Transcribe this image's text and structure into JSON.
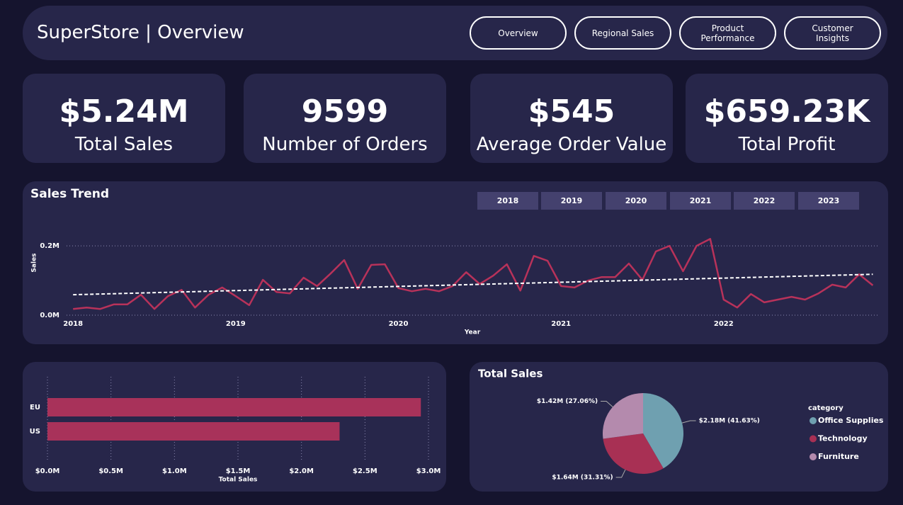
{
  "header": {
    "title": "SuperStore | Overview"
  },
  "nav": [
    "Overview",
    "Regional Sales",
    "Product Performance",
    "Customer Insights"
  ],
  "kpis": [
    {
      "value": "$5.24M",
      "label": "Total Sales"
    },
    {
      "value": "9599",
      "label": "Number of Orders"
    },
    {
      "value": "$545",
      "label": "Average Order Value"
    },
    {
      "value": "$659.23K",
      "label": "Total Profit"
    }
  ],
  "year_slicer": [
    "2018",
    "2019",
    "2020",
    "2021",
    "2022",
    "2023"
  ],
  "chart_data": [
    {
      "type": "line",
      "title": "Sales Trend",
      "x_label": "Year",
      "y_label": "Sales",
      "x": [
        2018,
        2018.083,
        2018.167,
        2018.25,
        2018.333,
        2018.417,
        2018.5,
        2018.583,
        2018.667,
        2018.75,
        2018.833,
        2018.917,
        2019,
        2019.083,
        2019.167,
        2019.25,
        2019.333,
        2019.417,
        2019.5,
        2019.583,
        2019.667,
        2019.75,
        2019.833,
        2019.917,
        2020,
        2020.083,
        2020.167,
        2020.25,
        2020.333,
        2020.417,
        2020.5,
        2020.583,
        2020.667,
        2020.75,
        2020.833,
        2020.917,
        2021,
        2021.083,
        2021.167,
        2021.25,
        2021.333,
        2021.417,
        2021.5,
        2021.583,
        2021.667,
        2021.75,
        2021.833,
        2021.917,
        2022,
        2022.083,
        2022.167,
        2022.25,
        2022.333,
        2022.417,
        2022.5,
        2022.583,
        2022.667,
        2022.75,
        2022.833,
        2022.917
      ],
      "values": [
        0.018,
        0.022,
        0.018,
        0.031,
        0.031,
        0.059,
        0.018,
        0.055,
        0.073,
        0.022,
        0.059,
        0.08,
        0.055,
        0.029,
        0.102,
        0.067,
        0.063,
        0.108,
        0.084,
        0.12,
        0.159,
        0.076,
        0.145,
        0.147,
        0.078,
        0.069,
        0.076,
        0.069,
        0.084,
        0.124,
        0.09,
        0.114,
        0.147,
        0.071,
        0.171,
        0.157,
        0.084,
        0.08,
        0.1,
        0.11,
        0.11,
        0.149,
        0.102,
        0.184,
        0.2,
        0.127,
        0.2,
        0.22,
        0.045,
        0.022,
        0.061,
        0.037,
        0.045,
        0.053,
        0.045,
        0.063,
        0.088,
        0.08,
        0.118,
        0.086
      ],
      "color": "#b8325a",
      "trend_line": {
        "x": [
          2018,
          2022.917
        ],
        "values": [
          0.059,
          0.118
        ],
        "color": "#ffffff"
      },
      "xlim": [
        2017.96,
        2022.95
      ],
      "xticks": [
        2018,
        2019,
        2020,
        2021,
        2022
      ],
      "ylim": [
        0,
        0.235
      ],
      "yticks": [
        {
          "value": 0,
          "label": "0.0M"
        },
        {
          "value": 0.2,
          "label": "0.2M"
        }
      ],
      "grid": true
    },
    {
      "type": "bar",
      "orientation": "horizontal",
      "x_label": "Total Sales",
      "categories": [
        "EU",
        "US"
      ],
      "values": [
        2.94,
        2.3
      ],
      "color": "#a8325a",
      "xlim": [
        0,
        3.0
      ],
      "xticks": [
        {
          "value": 0,
          "label": "$0.0M"
        },
        {
          "value": 0.5,
          "label": "$0.5M"
        },
        {
          "value": 1.0,
          "label": "$1.0M"
        },
        {
          "value": 1.5,
          "label": "$1.5M"
        },
        {
          "value": 2.0,
          "label": "$2.0M"
        },
        {
          "value": 2.5,
          "label": "$2.5M"
        },
        {
          "value": 3.0,
          "label": "$3.0M"
        }
      ],
      "grid": true
    },
    {
      "type": "pie",
      "title": "Total Sales",
      "legend_title": "category",
      "categories": [
        "Office Supplies",
        "Technology",
        "Furniture"
      ],
      "values": [
        2.18,
        1.64,
        1.42
      ],
      "value_labels": [
        "$2.18M (41.63%)",
        "$1.64M (31.31%)",
        "$1.42M (27.06%)"
      ],
      "colors": [
        "#6fa0b0",
        "#a83054",
        "#b48aad"
      ]
    }
  ]
}
